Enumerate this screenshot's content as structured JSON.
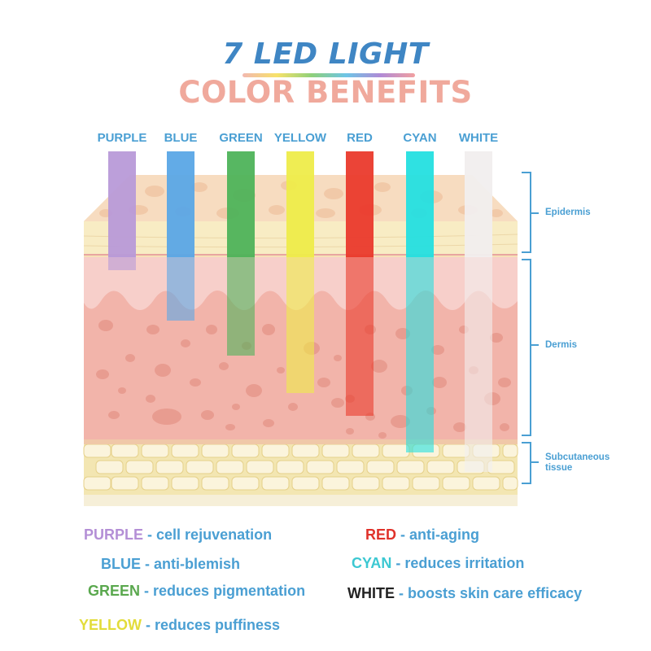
{
  "title": {
    "line1": "7 LED LIGHT",
    "line2": "COLOR BENEFITS"
  },
  "lights": [
    {
      "label": "PURPLE",
      "color": "#b89ad8",
      "depth": "epidermis"
    },
    {
      "label": "BLUE",
      "color": "#5aa6e6",
      "depth": "upper-dermis"
    },
    {
      "label": "GREEN",
      "color": "#4eb35a",
      "depth": "mid-dermis"
    },
    {
      "label": "YELLOW",
      "color": "#eeec4a",
      "depth": "deep-dermis"
    },
    {
      "label": "RED",
      "color": "#ea3a2c",
      "depth": "deep-dermis"
    },
    {
      "label": "CYAN",
      "color": "#24dfe0",
      "depth": "subcutaneous"
    },
    {
      "label": "WHITE",
      "color": "#f1eeee",
      "depth": "subcutaneous"
    }
  ],
  "layers": {
    "epidermis": "Epidermis",
    "dermis": "Dermis",
    "subcutaneous_line1": "Subcutaneous",
    "subcutaneous_line2": "tissue"
  },
  "benefits": [
    {
      "name": "PURPLE",
      "text": "- cell rejuvenation",
      "color": "#b48fd6"
    },
    {
      "name": "BLUE",
      "text": "- anti-blemish",
      "color": "#4a9fd3"
    },
    {
      "name": "GREEN",
      "text": "- reduces pigmentation",
      "color": "#5aa84e"
    },
    {
      "name": "YELLOW",
      "text": "- reduces puffiness",
      "color": "#e2dc3a"
    },
    {
      "name": "RED",
      "text": "- anti-aging",
      "color": "#e0322a"
    },
    {
      "name": "CYAN",
      "text": "- reduces irritation",
      "color": "#3cc8d2"
    },
    {
      "name": "WHITE",
      "text": "- boosts skin care efficacy",
      "color": "#222222"
    }
  ]
}
